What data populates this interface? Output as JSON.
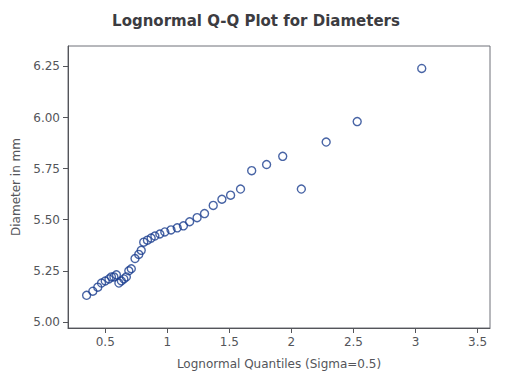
{
  "chart_data": {
    "type": "scatter",
    "title": "Lognormal Q-Q Plot for Diameters",
    "xlabel": "Lognormal Quantiles (Sigma=0.5)",
    "ylabel": "Diameter in mm",
    "x": [
      0.35,
      0.4,
      0.44,
      0.47,
      0.5,
      0.53,
      0.55,
      0.57,
      0.59,
      0.61,
      0.63,
      0.65,
      0.67,
      0.69,
      0.71,
      0.74,
      0.77,
      0.79,
      0.81,
      0.84,
      0.87,
      0.9,
      0.94,
      0.98,
      1.03,
      1.08,
      1.13,
      1.18,
      1.24,
      1.3,
      1.37,
      1.44,
      1.51,
      1.59,
      1.68,
      1.8,
      1.93,
      2.08,
      2.28,
      2.53,
      3.05
    ],
    "values": [
      5.13,
      5.15,
      5.17,
      5.19,
      5.2,
      5.21,
      5.22,
      5.22,
      5.23,
      5.19,
      5.2,
      5.21,
      5.22,
      5.25,
      5.26,
      5.31,
      5.33,
      5.35,
      5.39,
      5.4,
      5.41,
      5.42,
      5.43,
      5.44,
      5.45,
      5.46,
      5.47,
      5.49,
      5.51,
      5.53,
      5.57,
      5.6,
      5.62,
      5.65,
      5.74,
      5.77,
      5.81,
      5.65,
      5.88,
      5.98,
      6.24
    ],
    "color": "#1a3d8f",
    "marker": "open circle",
    "xlim": [
      0.2,
      3.6
    ],
    "xticks": [
      0.5,
      1,
      1.5,
      2,
      2.5,
      3,
      3.5
    ],
    "ylim": [
      4.97,
      6.35
    ],
    "yticks": [
      {
        "value": 5,
        "label": "5.00"
      },
      5.25,
      {
        "value": 5.5,
        "label": "5.50"
      },
      5.75,
      {
        "value": 6,
        "label": "6.00"
      },
      6.25
    ],
    "grid": false
  }
}
